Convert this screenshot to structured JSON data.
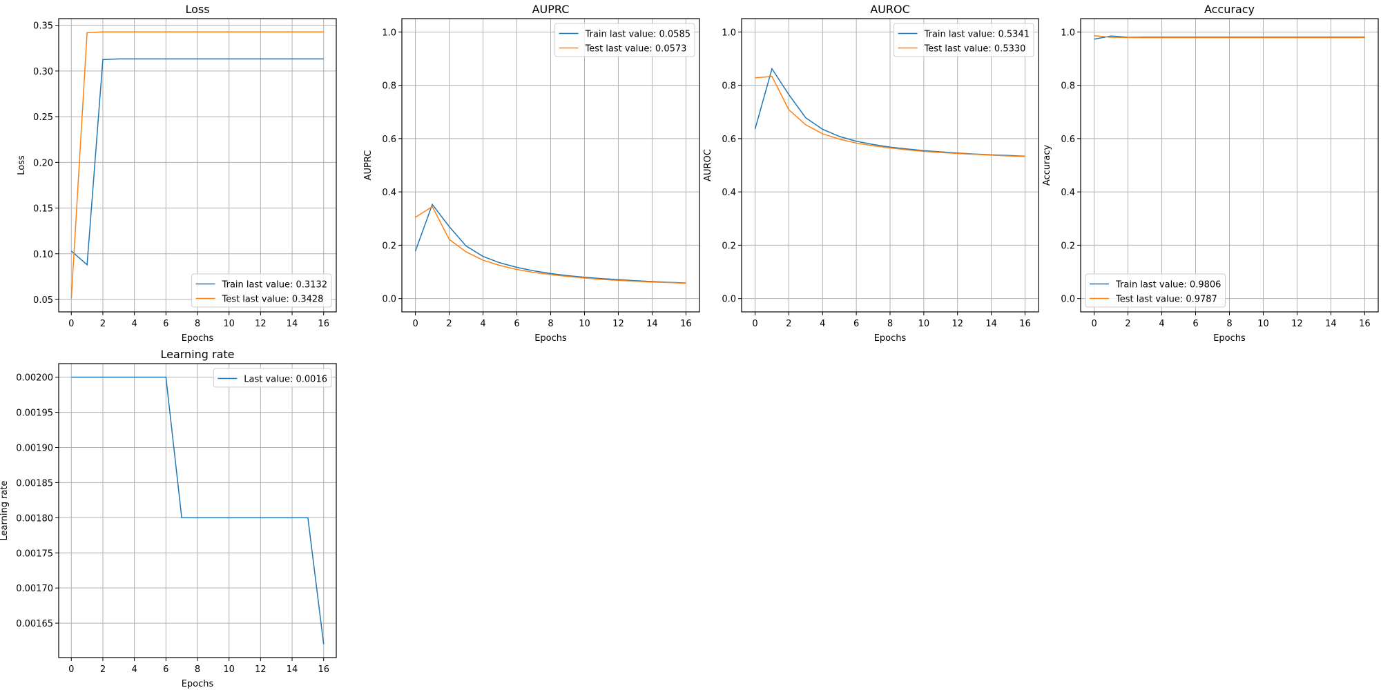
{
  "colors": {
    "train": "#1f77b4",
    "test": "#ff7f0e",
    "grid": "#b0b0b0",
    "legend_edge": "#cccccc"
  },
  "chart_data": [
    {
      "id": "loss",
      "type": "line",
      "title": "Loss",
      "xlabel": "Epochs",
      "ylabel": "Loss",
      "legend_loc": "lower-right",
      "grid": true,
      "xlim": [
        -0.8,
        16.8
      ],
      "ylim": [
        0.0364,
        0.3573
      ],
      "xticks": [
        "0",
        "2",
        "4",
        "6",
        "8",
        "10",
        "12",
        "14",
        "16"
      ],
      "yticks": [
        "0.05",
        "0.10",
        "0.15",
        "0.20",
        "0.25",
        "0.30",
        "0.35"
      ],
      "x": [
        0,
        1,
        2,
        3,
        4,
        5,
        6,
        7,
        8,
        9,
        10,
        11,
        12,
        13,
        14,
        15,
        16
      ],
      "series": [
        {
          "name": "Train last value: 0.3132",
          "color_key": "train",
          "values": [
            0.103,
            0.088,
            0.3125,
            0.3132,
            0.3132,
            0.3132,
            0.3132,
            0.3132,
            0.3132,
            0.3132,
            0.3132,
            0.3132,
            0.3132,
            0.3132,
            0.3132,
            0.3132,
            0.3132
          ]
        },
        {
          "name": "Test last value: 0.3428",
          "color_key": "test",
          "values": [
            0.051,
            0.342,
            0.3428,
            0.3428,
            0.3428,
            0.3428,
            0.3428,
            0.3428,
            0.3428,
            0.3428,
            0.3428,
            0.3428,
            0.3428,
            0.3428,
            0.3428,
            0.3428,
            0.3428
          ]
        }
      ]
    },
    {
      "id": "auprc",
      "type": "line",
      "title": "AUPRC",
      "xlabel": "Epochs",
      "ylabel": "AUPRC",
      "legend_loc": "upper-right",
      "grid": true,
      "xlim": [
        -0.8,
        16.8
      ],
      "ylim": [
        -0.05,
        1.05
      ],
      "xticks": [
        "0",
        "2",
        "4",
        "6",
        "8",
        "10",
        "12",
        "14",
        "16"
      ],
      "yticks": [
        "0.0",
        "0.2",
        "0.4",
        "0.6",
        "0.8",
        "1.0"
      ],
      "x": [
        0,
        1,
        2,
        3,
        4,
        5,
        6,
        7,
        8,
        9,
        10,
        11,
        12,
        13,
        14,
        15,
        16
      ],
      "series": [
        {
          "name": "Train last value: 0.0585",
          "color_key": "train",
          "values": [
            0.178,
            0.353,
            0.27,
            0.197,
            0.158,
            0.134,
            0.117,
            0.104,
            0.094,
            0.086,
            0.08,
            0.075,
            0.071,
            0.067,
            0.064,
            0.061,
            0.0585
          ]
        },
        {
          "name": "Test last value: 0.0573",
          "color_key": "test",
          "values": [
            0.305,
            0.345,
            0.222,
            0.175,
            0.144,
            0.124,
            0.109,
            0.098,
            0.09,
            0.083,
            0.077,
            0.072,
            0.068,
            0.065,
            0.062,
            0.06,
            0.0573
          ]
        }
      ]
    },
    {
      "id": "auroc",
      "type": "line",
      "title": "AUROC",
      "xlabel": "Epochs",
      "ylabel": "AUROC",
      "legend_loc": "upper-right",
      "grid": true,
      "xlim": [
        -0.8,
        16.8
      ],
      "ylim": [
        -0.05,
        1.05
      ],
      "xticks": [
        "0",
        "2",
        "4",
        "6",
        "8",
        "10",
        "12",
        "14",
        "16"
      ],
      "yticks": [
        "0.0",
        "0.2",
        "0.4",
        "0.6",
        "0.8",
        "1.0"
      ],
      "x": [
        0,
        1,
        2,
        3,
        4,
        5,
        6,
        7,
        8,
        9,
        10,
        11,
        12,
        13,
        14,
        15,
        16
      ],
      "series": [
        {
          "name": "Train last value: 0.5341",
          "color_key": "train",
          "values": [
            0.636,
            0.862,
            0.765,
            0.678,
            0.635,
            0.608,
            0.59,
            0.578,
            0.568,
            0.561,
            0.555,
            0.55,
            0.546,
            0.542,
            0.539,
            0.537,
            0.5341
          ]
        },
        {
          "name": "Test last value: 0.5330",
          "color_key": "test",
          "values": [
            0.828,
            0.833,
            0.708,
            0.652,
            0.618,
            0.598,
            0.583,
            0.573,
            0.565,
            0.558,
            0.552,
            0.548,
            0.544,
            0.541,
            0.538,
            0.535,
            0.533
          ]
        }
      ]
    },
    {
      "id": "accuracy",
      "type": "line",
      "title": "Accuracy",
      "xlabel": "Epochs",
      "ylabel": "Accuracy",
      "legend_loc": "lower-left",
      "grid": true,
      "xlim": [
        -0.8,
        16.8
      ],
      "ylim": [
        -0.05,
        1.05
      ],
      "xticks": [
        "0",
        "2",
        "4",
        "6",
        "8",
        "10",
        "12",
        "14",
        "16"
      ],
      "yticks": [
        "0.0",
        "0.2",
        "0.4",
        "0.6",
        "0.8",
        "1.0"
      ],
      "x": [
        0,
        1,
        2,
        3,
        4,
        5,
        6,
        7,
        8,
        9,
        10,
        11,
        12,
        13,
        14,
        15,
        16
      ],
      "series": [
        {
          "name": "Train last value: 0.9806",
          "color_key": "train",
          "values": [
            0.973,
            0.985,
            0.98,
            0.9806,
            0.9806,
            0.9806,
            0.9806,
            0.9806,
            0.9806,
            0.9806,
            0.9806,
            0.9806,
            0.9806,
            0.9806,
            0.9806,
            0.9806,
            0.9806
          ]
        },
        {
          "name": "Test last value: 0.9787",
          "color_key": "test",
          "values": [
            0.986,
            0.98,
            0.979,
            0.9787,
            0.9787,
            0.9787,
            0.9787,
            0.9787,
            0.9787,
            0.9787,
            0.9787,
            0.9787,
            0.9787,
            0.9787,
            0.9787,
            0.9787,
            0.9787
          ]
        }
      ]
    },
    {
      "id": "learning-rate",
      "type": "line",
      "title": "Learning rate",
      "xlabel": "Epochs",
      "ylabel": "Learning rate",
      "legend_loc": "upper-right",
      "grid": true,
      "xlim": [
        -0.8,
        16.8
      ],
      "ylim": [
        0.001601,
        0.0020193
      ],
      "xticks": [
        "0",
        "2",
        "4",
        "6",
        "8",
        "10",
        "12",
        "14",
        "16"
      ],
      "yticks": [
        "0.00165",
        "0.00170",
        "0.00175",
        "0.00180",
        "0.00185",
        "0.00190",
        "0.00195",
        "0.00200"
      ],
      "x": [
        0,
        1,
        2,
        3,
        4,
        5,
        6,
        7,
        8,
        9,
        10,
        11,
        12,
        13,
        14,
        15,
        16
      ],
      "series": [
        {
          "name": "Last value: 0.0016",
          "color_key": "train",
          "values": [
            0.002,
            0.002,
            0.002,
            0.002,
            0.002,
            0.002,
            0.002,
            0.0018,
            0.0018,
            0.0018,
            0.0018,
            0.0018,
            0.0018,
            0.0018,
            0.0018,
            0.0018,
            0.00162
          ]
        }
      ]
    }
  ]
}
